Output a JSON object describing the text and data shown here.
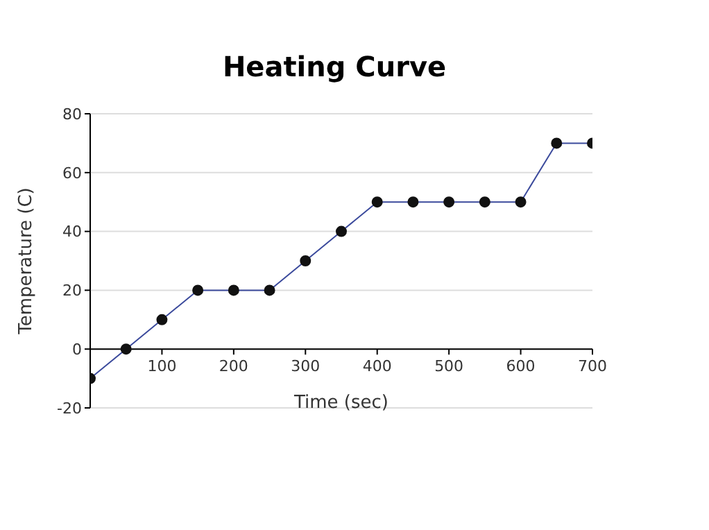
{
  "chart_data": {
    "type": "line",
    "title": "Heating Curve",
    "xlabel": "Time (sec)",
    "ylabel": "Temperature (C)",
    "x": [
      0,
      50,
      100,
      150,
      200,
      250,
      300,
      350,
      400,
      450,
      500,
      550,
      600,
      650,
      700
    ],
    "series": [
      {
        "color": "#3b4a9c",
        "values": [
          -10,
          0,
          10,
          20,
          20,
          20,
          30,
          40,
          50,
          50,
          50,
          50,
          50,
          70,
          70
        ]
      }
    ],
    "xlim": [
      0,
      700
    ],
    "xticks": [
      100,
      200,
      300,
      400,
      500,
      600,
      700
    ],
    "ylim": [
      -20,
      80
    ],
    "yticks": [
      -20,
      0,
      20,
      40,
      60,
      80
    ],
    "grid": "y",
    "marker": "circle",
    "line_style": "solid",
    "legend": false
  }
}
